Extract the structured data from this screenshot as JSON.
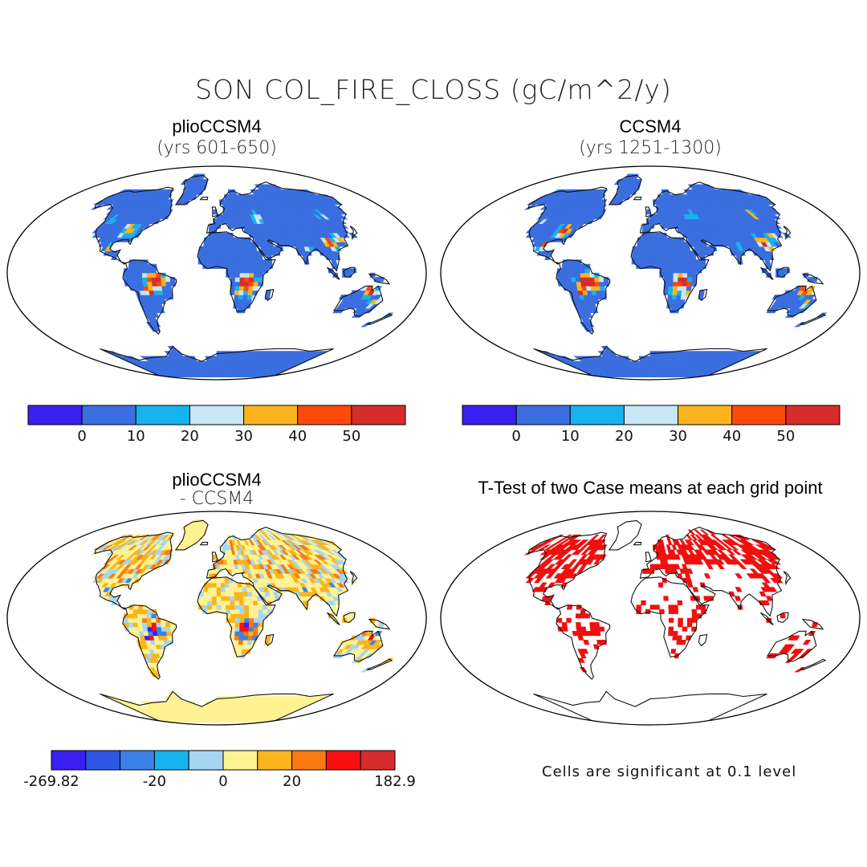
{
  "figure": {
    "title": "SON COL_FIRE_CLOSS (gC/m^2/y)"
  },
  "panels": [
    {
      "title": "plioCCSM4",
      "subtitle": "(yrs 601-650)",
      "colorbar": {
        "colors": [
          "#3a1ff0",
          "#3b6fe0",
          "#17b3ee",
          "#c7e6f4",
          "#fbb41d",
          "#fb4a0b",
          "#d62c2b"
        ],
        "labels": [
          "0",
          "10",
          "20",
          "30",
          "40",
          "50"
        ]
      }
    },
    {
      "title": "CCSM4",
      "subtitle": "(yrs 1251-1300)",
      "colorbar": {
        "colors": [
          "#3a1ff0",
          "#3b6fe0",
          "#17b3ee",
          "#c7e6f4",
          "#fbb41d",
          "#fb4a0b",
          "#d62c2b"
        ],
        "labels": [
          "0",
          "10",
          "20",
          "30",
          "40",
          "50"
        ]
      }
    },
    {
      "title": "plioCCSM4",
      "subtitle": "- CCSM4",
      "colorbar": {
        "colors": [
          "#3a1ff0",
          "#2c57e3",
          "#3b82e8",
          "#17b3ee",
          "#a6d5f2",
          "#fef292",
          "#fbb41d",
          "#fb7a10",
          "#f90f0f",
          "#d62c2b"
        ],
        "labels": [
          "-269.82",
          "-20",
          "0",
          "20",
          "182.9"
        ]
      }
    },
    {
      "title": "T-Test of two Case means at each grid point",
      "note": "Cells are significant at 0.1 level"
    }
  ]
}
